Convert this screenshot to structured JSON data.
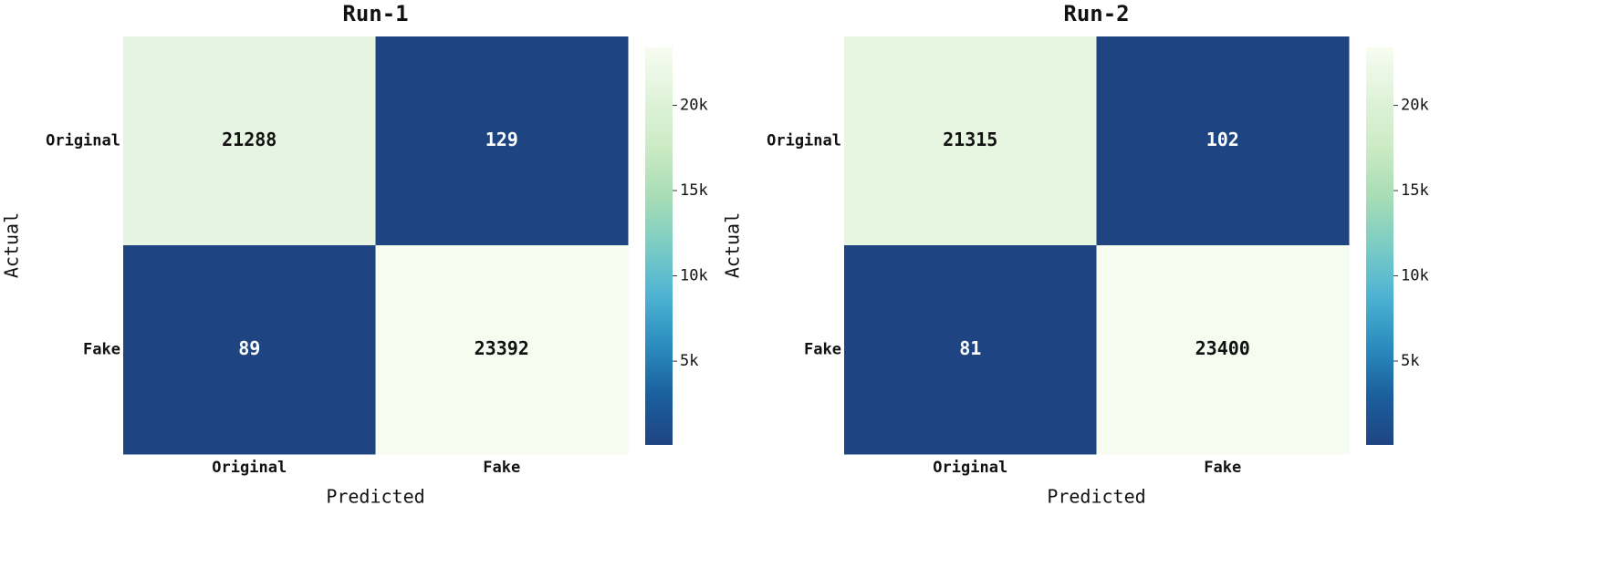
{
  "chart_data": [
    {
      "type": "heatmap",
      "title": "Run-1",
      "x_label": "Predicted",
      "y_label": "Actual",
      "x_categories": [
        "Original",
        "Fake"
      ],
      "y_categories": [
        "Original",
        "Fake"
      ],
      "values": [
        [
          21288,
          129
        ],
        [
          89,
          23392
        ]
      ],
      "clim": [
        89,
        23392
      ],
      "cticks": [
        {
          "value": 5000,
          "label": "5k"
        },
        {
          "value": 10000,
          "label": "10k"
        },
        {
          "value": 15000,
          "label": "15k"
        },
        {
          "value": 20000,
          "label": "20k"
        }
      ],
      "colormap": [
        "#1f4482",
        "#1b5f9e",
        "#2b8cbe",
        "#4eb3d3",
        "#7bccc4",
        "#a8ddb5",
        "#ccebc5",
        "#e0f3db",
        "#f7fcf0"
      ]
    },
    {
      "type": "heatmap",
      "title": "Run-2",
      "x_label": "Predicted",
      "y_label": "Actual",
      "x_categories": [
        "Original",
        "Fake"
      ],
      "y_categories": [
        "Original",
        "Fake"
      ],
      "values": [
        [
          21315,
          102
        ],
        [
          81,
          23400
        ]
      ],
      "clim": [
        81,
        23400
      ],
      "cticks": [
        {
          "value": 5000,
          "label": "5k"
        },
        {
          "value": 10000,
          "label": "10k"
        },
        {
          "value": 15000,
          "label": "15k"
        },
        {
          "value": 20000,
          "label": "20k"
        }
      ],
      "colormap": [
        "#1f4482",
        "#1b5f9e",
        "#2b8cbe",
        "#4eb3d3",
        "#7bccc4",
        "#a8ddb5",
        "#ccebc5",
        "#e0f3db",
        "#f7fcf0"
      ]
    }
  ]
}
